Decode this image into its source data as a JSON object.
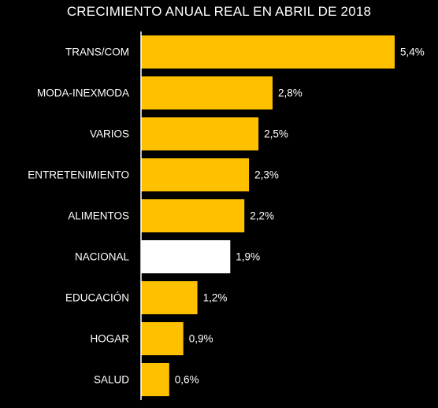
{
  "chart_data": {
    "type": "bar",
    "orientation": "horizontal",
    "title": "CRECIMIENTO ANUAL REAL EN ABRIL DE 2018",
    "categories": [
      "TRANS/COM",
      "MODA-INEXMODA",
      "VARIOS",
      "ENTRETENIMIENTO",
      "ALIMENTOS",
      "NACIONAL",
      "EDUCACIÓN",
      "HOGAR",
      "SALUD"
    ],
    "values": [
      5.4,
      2.8,
      2.5,
      2.3,
      2.2,
      1.9,
      1.2,
      0.9,
      0.6
    ],
    "value_labels": [
      "5,4%",
      "2,8%",
      "2,5%",
      "2,3%",
      "2,2%",
      "1,9%",
      "1,2%",
      "0,9%",
      "0,6%"
    ],
    "colors": {
      "default": "#FFC000",
      "highlight": "#FFFFFF",
      "background": "#000000",
      "axis": "#FFFFFF",
      "text": "#FFFFFF"
    },
    "highlight_category": "NACIONAL",
    "xlim": [
      0,
      5.4
    ],
    "grid": false,
    "legend": "none"
  }
}
